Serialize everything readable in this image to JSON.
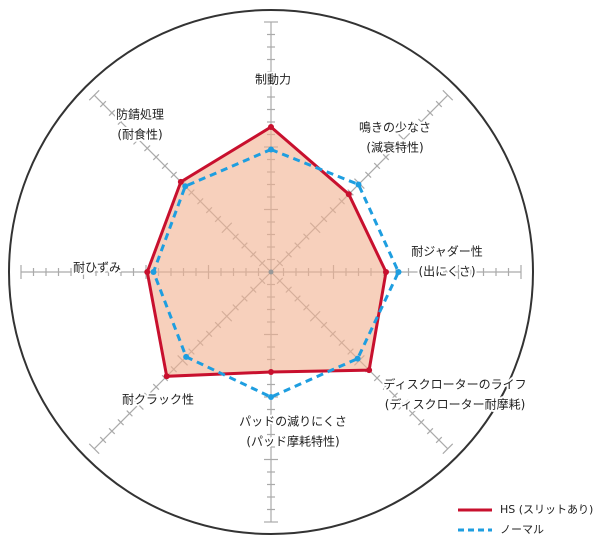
{
  "chart_data": {
    "type": "radar",
    "categories": [
      [
        "制動力"
      ],
      [
        "鳴きの少なさ",
        "(減衰特性)"
      ],
      [
        "耐ジャダー性",
        "(出にくさ)"
      ],
      [
        "ディスクローターのライフ",
        "(ディスクローター耐摩耗)"
      ],
      [
        "パッドの減りにくさ",
        "(パッド摩耗特性)"
      ],
      [
        "耐クラック性"
      ],
      [
        "耐ひずみ"
      ],
      [
        "防錆処理",
        "(耐食性)"
      ]
    ],
    "series": [
      {
        "name": "HS (スリットあり)",
        "color": "#c8102e",
        "values": [
          11.6,
          8.8,
          9.2,
          11.1,
          8.0,
          11.8,
          9.9,
          10.2
        ]
      },
      {
        "name": "ノーマル",
        "color": "#1e9ee0",
        "values": [
          9.8,
          9.9,
          10.2,
          9.8,
          10.0,
          9.6,
          9.4,
          9.7
        ]
      }
    ],
    "rlim": [
      0,
      20
    ],
    "rticks": [
      1,
      2,
      3,
      4,
      5,
      6,
      7,
      8,
      9,
      10,
      11,
      12,
      13,
      14,
      15,
      16,
      17,
      18,
      19,
      20
    ],
    "legend": "bottom-right"
  }
}
